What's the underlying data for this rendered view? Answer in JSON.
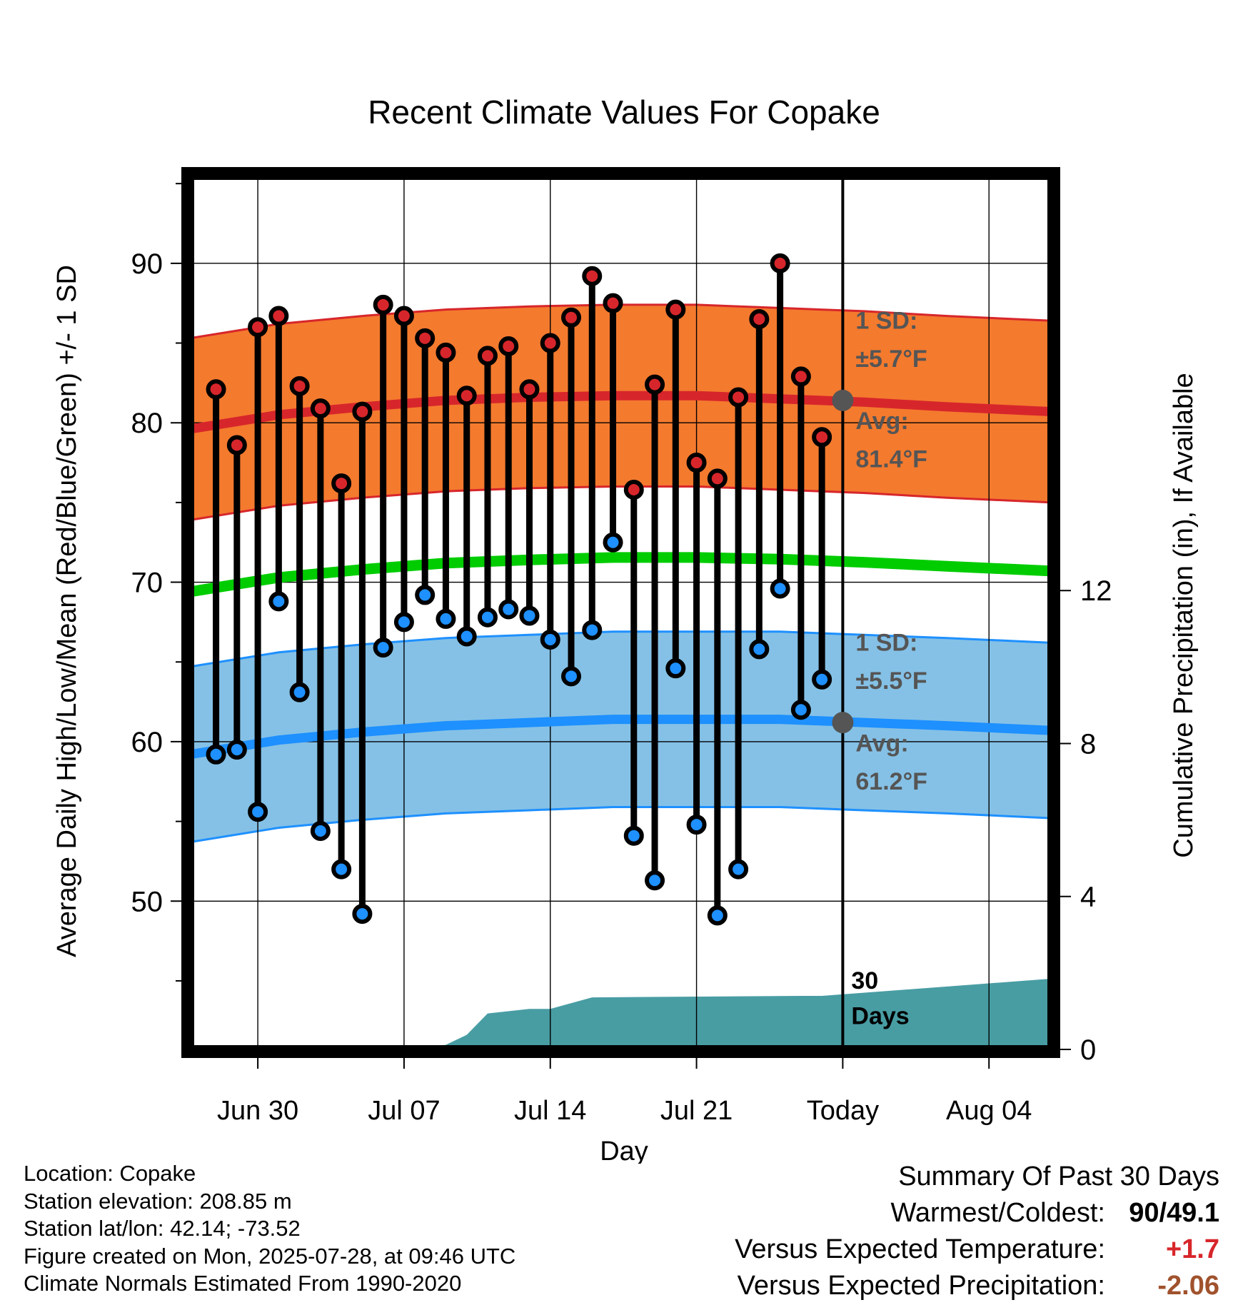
{
  "chart_data": {
    "type": "line",
    "title": "Recent Climate Values For Copake",
    "xlabel": "Day",
    "ylabel_left": "Average Daily High/Low/Mean (Red/Blue/Green) +/- 1 SD",
    "ylabel_right": "Cumulative Precipitation (in), If Available",
    "x_ticks": [
      "Jun 30",
      "Jul 07",
      "Jul 14",
      "Jul 21",
      "Today",
      "Aug 04"
    ],
    "x_tick_dates": [
      "2025-06-30",
      "2025-07-07",
      "2025-07-14",
      "2025-07-21",
      "2025-07-28",
      "2025-08-04"
    ],
    "x_range": [
      "2025-06-26T18:00",
      "2025-08-07T00:00"
    ],
    "y_left_ticks": [
      50,
      60,
      70,
      80,
      90
    ],
    "y_left_range": [
      40.7,
      95.5
    ],
    "y_right_ticks": [
      0,
      4,
      8,
      12
    ],
    "y_right_range": [
      0,
      22.85
    ],
    "grid": true,
    "daily_dates": [
      "2025-06-28",
      "2025-06-29",
      "2025-06-30",
      "2025-07-01",
      "2025-07-02",
      "2025-07-03",
      "2025-07-04",
      "2025-07-05",
      "2025-07-06",
      "2025-07-07",
      "2025-07-08",
      "2025-07-09",
      "2025-07-10",
      "2025-07-11",
      "2025-07-12",
      "2025-07-13",
      "2025-07-14",
      "2025-07-15",
      "2025-07-16",
      "2025-07-17",
      "2025-07-18",
      "2025-07-19",
      "2025-07-20",
      "2025-07-21",
      "2025-07-22",
      "2025-07-23",
      "2025-07-24",
      "2025-07-25",
      "2025-07-26",
      "2025-07-27"
    ],
    "daily_high": [
      82.1,
      78.6,
      86.0,
      86.7,
      82.3,
      80.9,
      76.2,
      80.7,
      87.4,
      86.7,
      85.3,
      84.4,
      81.7,
      84.2,
      84.8,
      82.1,
      85.0,
      86.6,
      89.2,
      87.5,
      75.8,
      82.4,
      87.1,
      77.5,
      76.5,
      81.6,
      86.5,
      90.0,
      82.9,
      79.1
    ],
    "daily_low": [
      59.2,
      59.5,
      55.6,
      68.8,
      63.1,
      54.4,
      52.0,
      49.2,
      65.9,
      67.5,
      69.2,
      67.7,
      66.6,
      67.8,
      68.3,
      67.9,
      66.4,
      64.1,
      67.0,
      72.5,
      54.1,
      51.3,
      64.6,
      54.8,
      49.1,
      52.0,
      65.8,
      69.6,
      62.0,
      63.9
    ],
    "normal_dates": [
      "2025-06-26T18:00",
      "2025-07-01",
      "2025-07-05",
      "2025-07-09",
      "2025-07-13",
      "2025-07-17",
      "2025-07-21",
      "2025-07-25",
      "2025-07-29",
      "2025-08-02",
      "2025-08-07T00:00"
    ],
    "normal_high_avg": [
      79.6,
      80.5,
      81.0,
      81.4,
      81.6,
      81.7,
      81.7,
      81.5,
      81.3,
      81.0,
      80.7
    ],
    "normal_low_avg": [
      59.2,
      60.1,
      60.6,
      61.0,
      61.2,
      61.4,
      61.4,
      61.4,
      61.2,
      61.0,
      60.7
    ],
    "normal_mean": [
      69.4,
      70.3,
      70.8,
      71.2,
      71.4,
      71.55,
      71.55,
      71.45,
      71.25,
      71.0,
      70.7
    ],
    "high_sd_f": 5.7,
    "low_sd_f": 5.5,
    "precip_dates": [
      "2025-06-26T18:00",
      "2025-07-02",
      "2025-07-03",
      "2025-07-08",
      "2025-07-09",
      "2025-07-10",
      "2025-07-11",
      "2025-07-13",
      "2025-07-14",
      "2025-07-16",
      "2025-07-26",
      "2025-07-27",
      "2025-08-07T00:00"
    ],
    "precip_cum": [
      0.0,
      0.0,
      0.08,
      0.08,
      0.12,
      0.38,
      0.94,
      1.06,
      1.06,
      1.36,
      1.4,
      1.4,
      1.85
    ],
    "precip_flat_from": "2025-07-27",
    "precip_end_value": 1.85,
    "today": "2025-07-28",
    "annotations": {
      "high_sd": [
        "1 SD:",
        "±5.7°F"
      ],
      "high_avg": [
        "Avg:",
        "81.4°F"
      ],
      "low_sd": [
        "1 SD:",
        "±5.5°F"
      ],
      "low_avg": [
        "Avg:",
        "61.2°F"
      ],
      "window": [
        "30",
        "Days"
      ]
    },
    "today_avg_high": 81.4,
    "today_avg_low": 61.2,
    "colors": {
      "high_band": "#F47A2E",
      "high_line": "#D7262B",
      "low_band": "#85C1E6",
      "low_line": "#1E90FF",
      "mean_line": "#00CC00",
      "precip": "#489DA3",
      "high_dot": "#D7262B",
      "low_dot": "#1E90FF",
      "annotation": "#555555"
    }
  },
  "footer": {
    "location": "Location: Copake",
    "elevation": "Station elevation: 208.85 m",
    "latlon": "Station lat/lon: 42.14; -73.52",
    "created": "Figure created on Mon, 2025-07-28, at 09:46 UTC",
    "normals": "Climate Normals Estimated From 1990-2020"
  },
  "summary": {
    "heading": "Summary Of Past 30 Days",
    "warmest_label": "Warmest/Coldest:",
    "warmest_value": "90/49.1",
    "temp_label": "Versus Expected Temperature:",
    "temp_value": "+1.7",
    "temp_color": "#D7262B",
    "precip_label": "Versus Expected Precipitation:",
    "precip_value": "-2.06",
    "precip_color": "#A0522D"
  }
}
